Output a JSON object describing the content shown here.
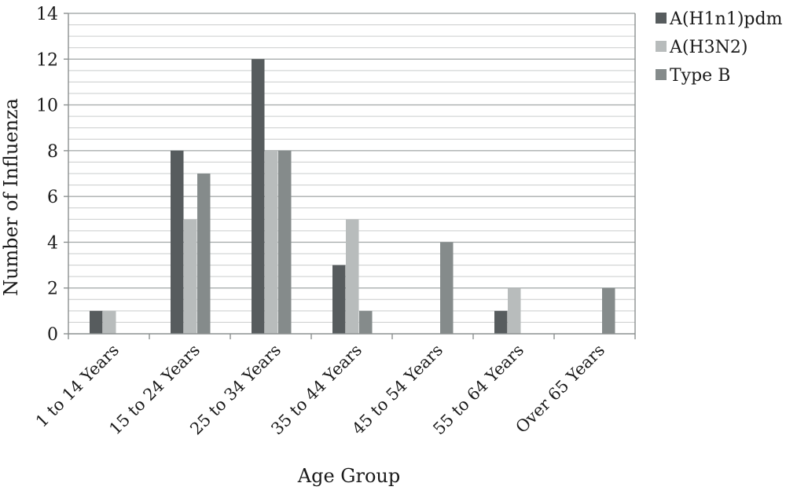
{
  "chart_data": {
    "type": "bar",
    "title": "",
    "xlabel": "Age Group",
    "ylabel": "Number of Influenza",
    "ylim": [
      0,
      14
    ],
    "yticks": [
      "0",
      "2",
      "4",
      "6",
      "8",
      "10",
      "12",
      "14"
    ],
    "minor_grid_step": 0.5,
    "grid": true,
    "legend_position": "top-right",
    "categories": [
      "1 to 14 Years",
      "15 to 24 Years",
      "25 to 34 Years",
      "35 to 44 Years",
      "45 to 54 Years",
      "55 to 64 Years",
      "Over 65 Years"
    ],
    "series": [
      {
        "name": "A(H1n1)pdm",
        "color": "#575c5e",
        "values": [
          1,
          8,
          12,
          3,
          0,
          1,
          0
        ]
      },
      {
        "name": "A(H3N2)",
        "color": "#b8bcbc",
        "values": [
          1,
          5,
          8,
          5,
          0,
          2,
          0
        ]
      },
      {
        "name": "Type B",
        "color": "#858b8b",
        "values": [
          0,
          7,
          8,
          1,
          4,
          0,
          2
        ]
      }
    ]
  }
}
